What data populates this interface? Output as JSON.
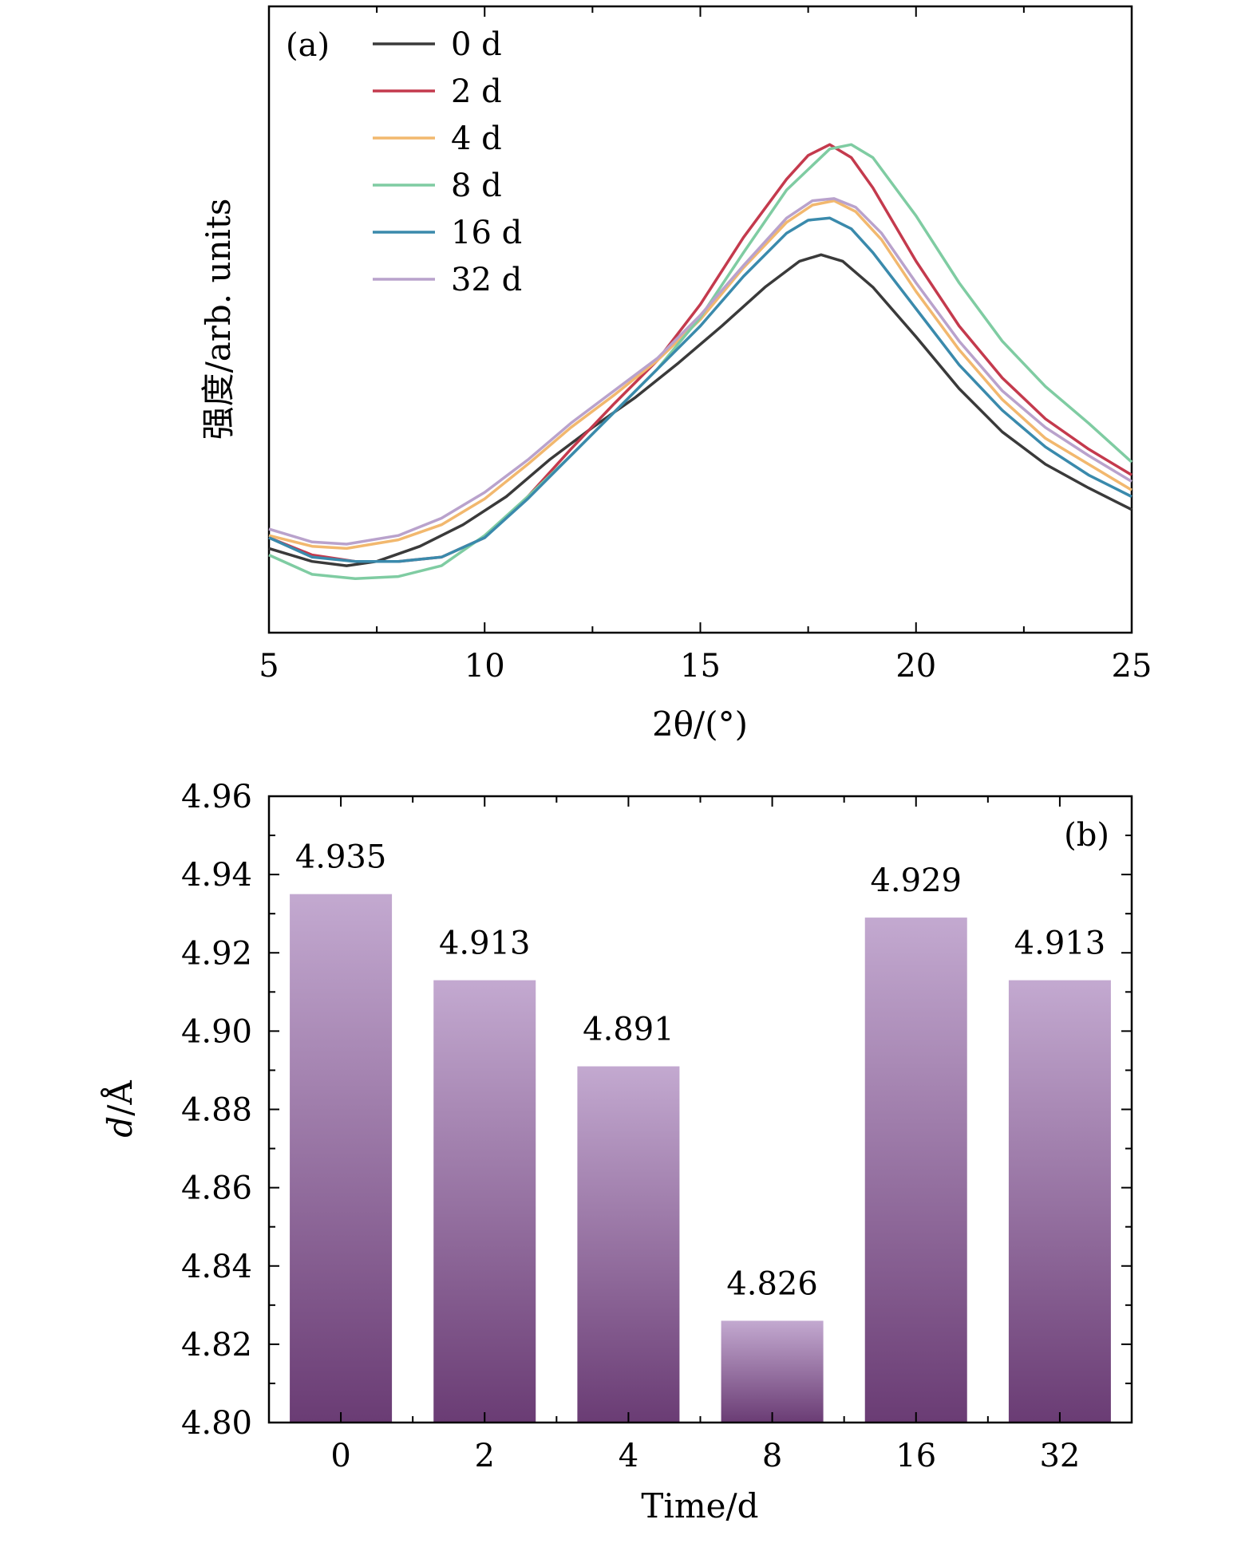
{
  "chart_data": [
    {
      "type": "line",
      "panel_label": "(a)",
      "xlabel": "2θ/(°)",
      "ylabel": "强度/arb. units",
      "xlim": [
        5,
        25
      ],
      "ylim": [
        0.6,
        3.5
      ],
      "x_ticks": [
        5,
        10,
        15,
        20,
        25
      ],
      "y_ticks_shown": false,
      "legend": "top-left",
      "series": [
        {
          "name": "0 d",
          "color": "#3a3a3a",
          "x": [
            5,
            6,
            6.8,
            7.5,
            8.5,
            9.5,
            10.5,
            11.5,
            12.5,
            13.5,
            14.5,
            15.5,
            16.5,
            17.3,
            17.8,
            18.3,
            19,
            20,
            21,
            22,
            23,
            24,
            25
          ],
          "y": [
            0.99,
            0.93,
            0.91,
            0.93,
            1.0,
            1.1,
            1.23,
            1.4,
            1.55,
            1.69,
            1.85,
            2.02,
            2.2,
            2.32,
            2.35,
            2.32,
            2.2,
            1.97,
            1.73,
            1.53,
            1.38,
            1.27,
            1.17
          ]
        },
        {
          "name": "2 d",
          "color": "#c43a4d",
          "x": [
            5,
            6,
            7,
            8,
            9,
            10,
            11,
            12,
            13,
            14,
            15,
            16,
            17,
            17.5,
            18,
            18.5,
            19,
            20,
            21,
            22,
            23,
            24,
            25
          ],
          "y": [
            1.04,
            0.96,
            0.93,
            0.93,
            0.95,
            1.04,
            1.23,
            1.45,
            1.66,
            1.86,
            2.12,
            2.43,
            2.7,
            2.81,
            2.86,
            2.8,
            2.66,
            2.32,
            2.02,
            1.78,
            1.59,
            1.45,
            1.33
          ]
        },
        {
          "name": "4 d",
          "color": "#f2b86e",
          "x": [
            5,
            6,
            6.8,
            8,
            9,
            10,
            11,
            12,
            13,
            14,
            15,
            16,
            17,
            17.6,
            18.1,
            18.6,
            19.2,
            20,
            21,
            22,
            23,
            24,
            25
          ],
          "y": [
            1.05,
            1.0,
            0.99,
            1.03,
            1.1,
            1.22,
            1.38,
            1.55,
            1.7,
            1.86,
            2.05,
            2.29,
            2.5,
            2.58,
            2.6,
            2.55,
            2.42,
            2.18,
            1.91,
            1.68,
            1.5,
            1.38,
            1.26
          ]
        },
        {
          "name": "8 d",
          "color": "#7fcca2",
          "x": [
            5,
            6,
            7,
            8,
            9,
            10,
            11,
            12,
            13,
            14,
            15,
            16,
            17,
            18,
            18.5,
            19,
            20,
            21,
            22,
            23,
            24,
            25
          ],
          "y": [
            0.96,
            0.87,
            0.85,
            0.86,
            0.91,
            1.05,
            1.23,
            1.42,
            1.62,
            1.82,
            2.06,
            2.36,
            2.65,
            2.84,
            2.86,
            2.8,
            2.53,
            2.22,
            1.95,
            1.74,
            1.57,
            1.39
          ]
        },
        {
          "name": "16 d",
          "color": "#3a8aac",
          "x": [
            5,
            6,
            7,
            8,
            9,
            10,
            11,
            12,
            13,
            14,
            15,
            16,
            17,
            17.5,
            18,
            18.5,
            19,
            20,
            21,
            22,
            23,
            24,
            25
          ],
          "y": [
            1.04,
            0.95,
            0.93,
            0.93,
            0.95,
            1.04,
            1.22,
            1.42,
            1.62,
            1.82,
            2.02,
            2.25,
            2.45,
            2.51,
            2.52,
            2.47,
            2.36,
            2.1,
            1.84,
            1.63,
            1.46,
            1.33,
            1.23
          ]
        },
        {
          "name": "32 d",
          "color": "#b9a2cc",
          "x": [
            5,
            6,
            6.8,
            8,
            9,
            10,
            11,
            12,
            13,
            14,
            15,
            16,
            17,
            17.6,
            18.1,
            18.6,
            19.2,
            20,
            21,
            22,
            23,
            24,
            25
          ],
          "y": [
            1.08,
            1.02,
            1.01,
            1.05,
            1.13,
            1.25,
            1.4,
            1.57,
            1.72,
            1.87,
            2.07,
            2.3,
            2.52,
            2.6,
            2.61,
            2.57,
            2.45,
            2.22,
            1.95,
            1.72,
            1.55,
            1.42,
            1.3
          ]
        }
      ]
    },
    {
      "type": "bar",
      "panel_label": "(b)",
      "xlabel": "Time/d",
      "ylabel": "d/Å",
      "ylabel_italic_part": "d",
      "ylabel_rest": "/Å",
      "categories": [
        "0",
        "2",
        "4",
        "8",
        "16",
        "32"
      ],
      "values": [
        4.935,
        4.913,
        4.891,
        4.826,
        4.929,
        4.913
      ],
      "data_labels": [
        "4.935",
        "4.913",
        "4.891",
        "4.826",
        "4.929",
        "4.913"
      ],
      "ylim": [
        4.8,
        4.96
      ],
      "y_ticks": [
        "4.80",
        "4.82",
        "4.84",
        "4.86",
        "4.88",
        "4.90",
        "4.92",
        "4.94",
        "4.96"
      ],
      "bar_gradient": {
        "top": "#c3a9d0",
        "bottom": "#6a3c74"
      }
    }
  ],
  "colors": {
    "axis": "#000000"
  }
}
